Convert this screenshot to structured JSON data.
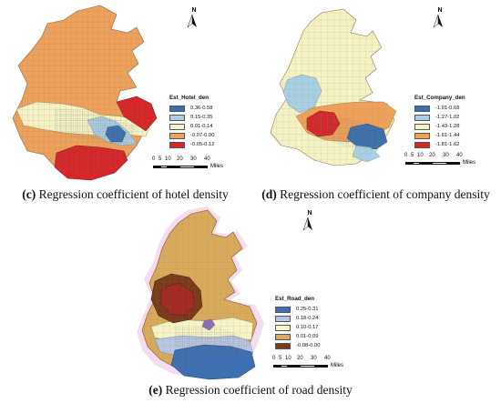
{
  "panels": {
    "c": {
      "caption_letter": "(c)",
      "caption_text": " Regression coefficient of hotel density",
      "north": "N",
      "legend": {
        "title": "Est_Hotel_den",
        "items": [
          {
            "label": "0.36-0.58",
            "color": "#3a6fb0"
          },
          {
            "label": "0.15-0.35",
            "color": "#a8cfe4"
          },
          {
            "label": "0.01-0.14",
            "color": "#f5f3c3"
          },
          {
            "label": "-0.07-0.00",
            "color": "#efa15a"
          },
          {
            "label": "-0.05-0.12",
            "color": "#d7262a"
          }
        ]
      },
      "scale": {
        "ticks": [
          "0",
          "5",
          "10",
          "20",
          "30",
          "40"
        ],
        "unit": "Miles"
      }
    },
    "d": {
      "caption_letter": "(d)",
      "caption_text": " Regression coefficient of company density",
      "north": "N",
      "legend": {
        "title": "Est_Company_den",
        "items": [
          {
            "label": "-1.01-0.68",
            "color": "#3a6fb0"
          },
          {
            "label": "-1.27-1.02",
            "color": "#a8cfe4"
          },
          {
            "label": "-1.43-1.28",
            "color": "#f5f3c3"
          },
          {
            "label": "-1.61-1.44",
            "color": "#efa15a"
          },
          {
            "label": "-1.81-1.62",
            "color": "#d7262a"
          }
        ]
      },
      "scale": {
        "ticks": [
          "0",
          "5",
          "10",
          "20",
          "30",
          "40"
        ],
        "unit": "Miles"
      }
    },
    "e": {
      "caption_letter": "(e)",
      "caption_text": " Regression coefficient of road density",
      "north": "N",
      "legend": {
        "title": "Est_Road_den",
        "items": [
          {
            "label": "0.25-0.31",
            "color": "#3f6fb3"
          },
          {
            "label": "0.18-0.24",
            "color": "#b9c6e3"
          },
          {
            "label": "0.10-0.17",
            "color": "#f7f4c8"
          },
          {
            "label": "0.01-0.09",
            "color": "#d9aa5c"
          },
          {
            "label": "-0.08-0.00",
            "color": "#7a3b1c"
          }
        ]
      },
      "scale": {
        "ticks": [
          "0",
          "5",
          "10",
          "20",
          "30",
          "40"
        ],
        "unit": "Miles"
      }
    }
  }
}
